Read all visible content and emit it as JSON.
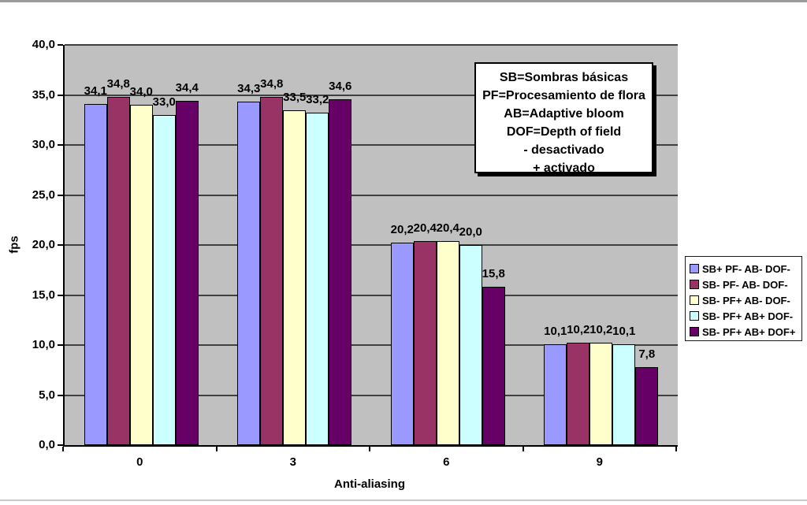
{
  "chart_data": {
    "type": "bar",
    "xlabel": "Anti-aliasing",
    "ylabel": "fps",
    "categories": [
      "0",
      "3",
      "6",
      "9"
    ],
    "series": [
      {
        "name": "SB+ PF- AB- DOF-",
        "color": "#9999FF",
        "values": [
          34.1,
          34.3,
          20.2,
          10.1
        ]
      },
      {
        "name": "SB- PF- AB- DOF-",
        "color": "#993366",
        "values": [
          34.8,
          34.8,
          20.4,
          10.2
        ]
      },
      {
        "name": "SB- PF+ AB- DOF-",
        "color": "#FFFFCC",
        "values": [
          34.0,
          33.5,
          20.4,
          10.2
        ]
      },
      {
        "name": "SB- PF+ AB+ DOF-",
        "color": "#CCFFFF",
        "values": [
          33.0,
          33.2,
          20.0,
          10.1
        ]
      },
      {
        "name": "SB- PF+ AB+ DOF+",
        "color": "#660066",
        "values": [
          34.4,
          34.6,
          15.8,
          7.8
        ]
      }
    ],
    "ylim": [
      0,
      40
    ],
    "ytick_step": 5,
    "decimal_separator": ",",
    "grid": true,
    "legend_position": "right",
    "plot_background": "#C0C0C0",
    "data_labels": true
  },
  "annotation": {
    "lines": [
      "SB=Sombras básicas",
      "PF=Procesamiento de flora",
      "AB=Adaptive bloom",
      "DOF=Depth of field",
      "- desactivado",
      "+ activado"
    ]
  }
}
